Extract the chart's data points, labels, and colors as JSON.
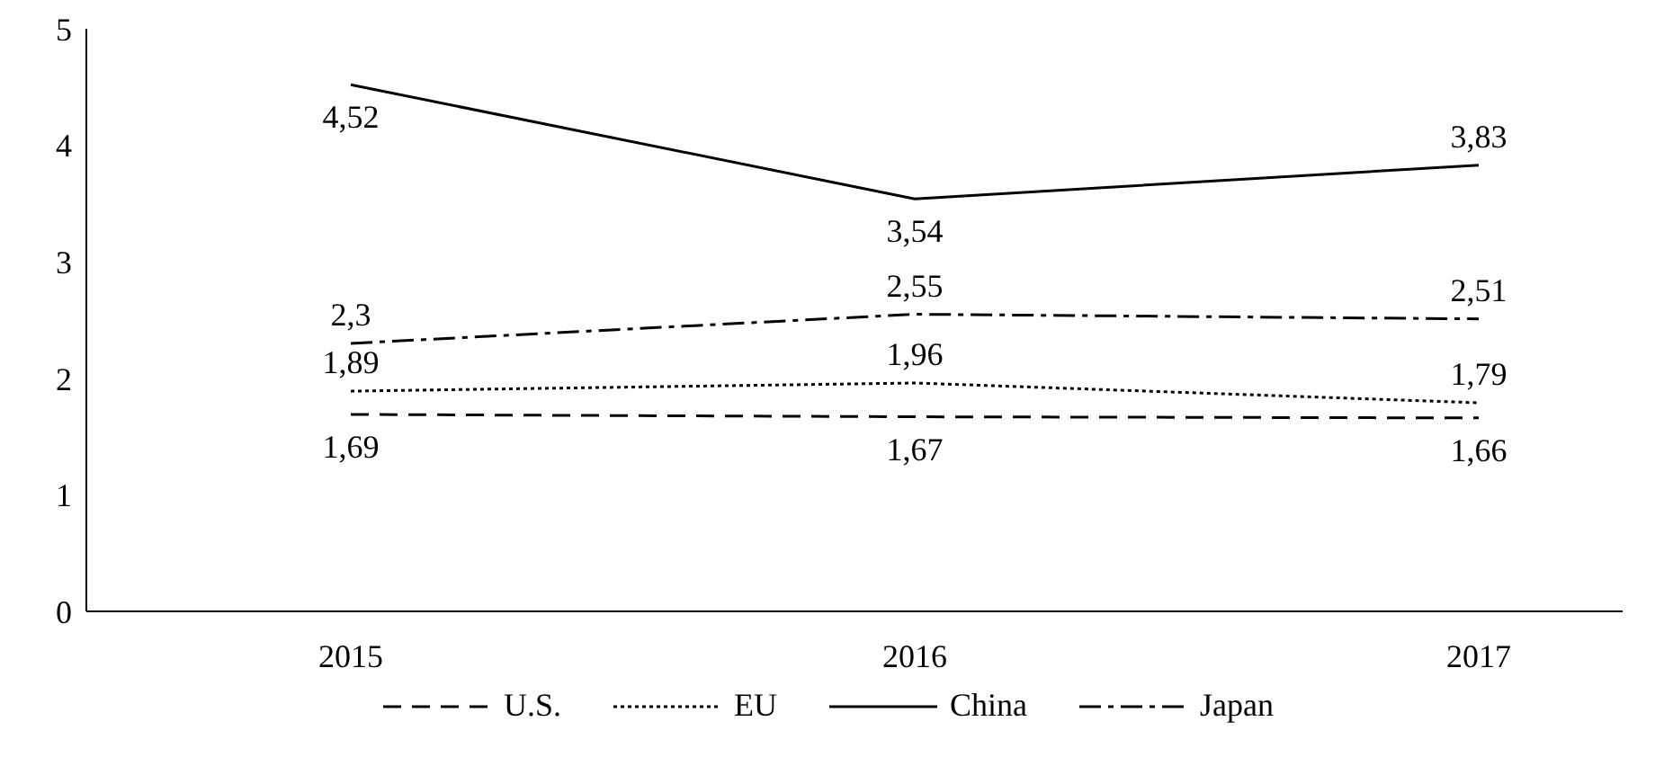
{
  "chart_data": {
    "type": "line",
    "categories": [
      "2015",
      "2016",
      "2017"
    ],
    "series": [
      {
        "name": "U.S.",
        "color": "#000000",
        "line_style": "dashed",
        "values": [
          1.69,
          1.67,
          1.66
        ],
        "value_labels": [
          "1,69",
          "1,67",
          "1,66"
        ]
      },
      {
        "name": "EU",
        "color": "#000000",
        "line_style": "dotted",
        "values": [
          1.89,
          1.96,
          1.79
        ],
        "value_labels": [
          "1,89",
          "1,96",
          "1,79"
        ]
      },
      {
        "name": "China",
        "color": "#000000",
        "line_style": "solid",
        "values": [
          4.52,
          3.54,
          3.83
        ],
        "value_labels": [
          "4,52",
          "3,54",
          "3,83"
        ]
      },
      {
        "name": "Japan",
        "color": "#000000",
        "line_style": "dashdot",
        "values": [
          2.3,
          2.55,
          2.51
        ],
        "value_labels": [
          "2,3",
          "2,55",
          "2,51"
        ]
      }
    ],
    "ylim": [
      0,
      5
    ],
    "yticks": [
      0,
      1,
      2,
      3,
      4,
      5
    ],
    "grid": false,
    "legend": "bottom",
    "marker": "none"
  }
}
